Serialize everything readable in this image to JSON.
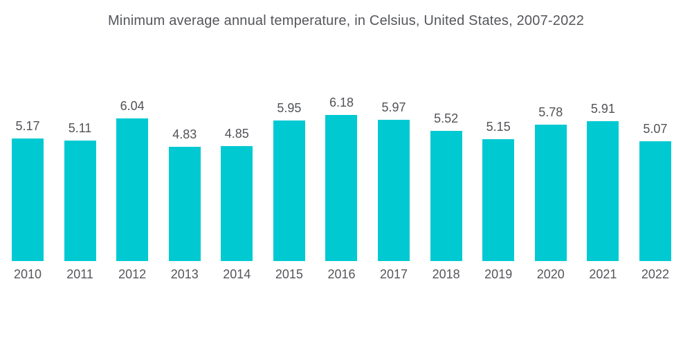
{
  "chart_data": {
    "type": "bar",
    "title": "Minimum average annual temperature, in Celsius, United States, 2007-2022",
    "categories": [
      "2010",
      "2011",
      "2012",
      "2013",
      "2014",
      "2015",
      "2016",
      "2017",
      "2018",
      "2019",
      "2020",
      "2021",
      "2022"
    ],
    "values": [
      5.17,
      5.11,
      6.04,
      4.83,
      4.85,
      5.95,
      6.18,
      5.97,
      5.52,
      5.15,
      5.78,
      5.91,
      5.07
    ],
    "value_labels": [
      "5.17",
      "5.11",
      "6.04",
      "4.83",
      "4.85",
      "5.95",
      "6.18",
      "5.97",
      "5.52",
      "5.15",
      "5.78",
      "5.91",
      "5.07"
    ],
    "xlabel": "",
    "ylabel": "",
    "ylim": [
      0,
      6.5
    ],
    "grid": false,
    "legend_position": "none",
    "value_labels_shown": true,
    "bar_color": "#00C9D2",
    "text_color": "#55565B",
    "background_color": "#FFFFFF"
  }
}
